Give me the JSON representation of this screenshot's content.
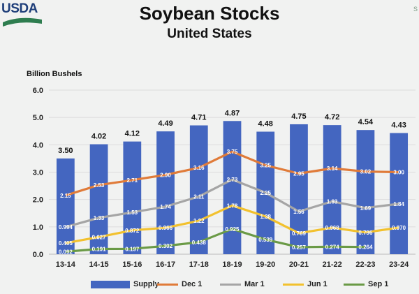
{
  "logo": {
    "text": "USDA"
  },
  "corner_mark": "S",
  "chart_data": {
    "type": "bar",
    "title": "Soybean Stocks",
    "subtitle": "United States",
    "ylabel": "Billion Bushels",
    "xlabel": "",
    "ylim": [
      0,
      6
    ],
    "yticks": [
      "0.0",
      "1.0",
      "2.0",
      "3.0",
      "4.0",
      "5.0",
      "6.0"
    ],
    "categories": [
      "13-14",
      "14-15",
      "15-16",
      "16-17",
      "17-18",
      "18-19",
      "19-20",
      "20-21",
      "21-22",
      "22-23",
      "23-24"
    ],
    "bar_series": {
      "name": "Supply",
      "color": "#4466c0",
      "values": [
        3.5,
        4.02,
        4.12,
        4.49,
        4.71,
        4.87,
        4.48,
        4.75,
        4.72,
        4.54,
        4.43
      ],
      "labels": [
        "3.50",
        "4.02",
        "4.12",
        "4.49",
        "4.71",
        "4.87",
        "4.48",
        "4.75",
        "4.72",
        "4.54",
        "4.43"
      ]
    },
    "line_series": [
      {
        "name": "Dec 1",
        "color": "#e07b39",
        "values": [
          2.15,
          2.53,
          2.71,
          2.9,
          3.16,
          3.75,
          3.25,
          2.95,
          3.14,
          3.02,
          3.0
        ],
        "labels": [
          "2.15",
          "2.53",
          "2.71",
          "2.90",
          "3.16",
          "3.75",
          "3.25",
          "2.95",
          "3.14",
          "3.02",
          "3.00"
        ]
      },
      {
        "name": "Mar 1",
        "color": "#a5a5a5",
        "values": [
          0.994,
          1.33,
          1.53,
          1.74,
          2.11,
          2.73,
          2.25,
          1.56,
          1.93,
          1.69,
          1.84
        ],
        "labels": [
          "0.994",
          "1.33",
          "1.53",
          "1.74",
          "2.11",
          "2.73",
          "2.25",
          "1.56",
          "1.93",
          "1.69",
          "1.84"
        ]
      },
      {
        "name": "Jun 1",
        "color": "#f2c12e",
        "values": [
          0.405,
          0.627,
          0.872,
          0.966,
          1.22,
          1.78,
          1.38,
          0.769,
          0.968,
          0.796,
          0.97
        ],
        "labels": [
          "0.405",
          "0.627",
          "0.872",
          "0.966",
          "1.22",
          "1.78",
          "1.38",
          "0.769",
          "0.968",
          "0.796",
          "0.970"
        ]
      },
      {
        "name": "Sep 1",
        "color": "#6a9a46",
        "values": [
          0.092,
          0.191,
          0.197,
          0.302,
          0.438,
          0.925,
          0.539,
          0.257,
          0.274,
          0.264,
          null
        ],
        "labels": [
          "0.092",
          "0.191",
          "0.197",
          "0.302",
          "0.438",
          "0.925",
          "0.539",
          "0.257",
          "0.274",
          "0.264",
          null
        ]
      }
    ],
    "legend": [
      "Supply",
      "Dec 1",
      "Mar 1",
      "Jun 1",
      "Sep 1"
    ],
    "legend_position": "bottom",
    "grid": true
  }
}
